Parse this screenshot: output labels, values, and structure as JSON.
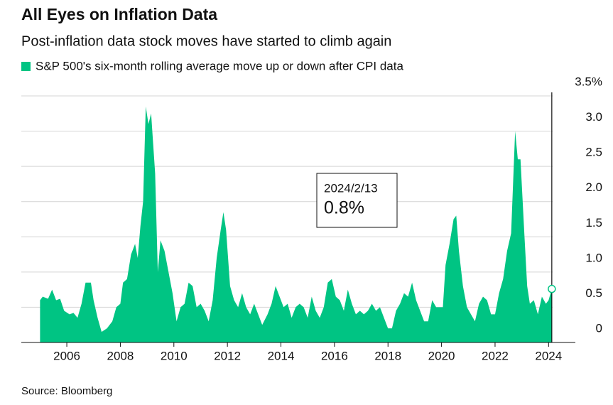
{
  "chart_data": {
    "type": "area",
    "title": "All Eyes on Inflation Data",
    "subtitle": "Post-inflation data stock moves have started to climb again",
    "source": "Source: Bloomberg",
    "series": [
      {
        "name": "S&P 500's six-month rolling average move up or down after CPI data",
        "color": "#00c483",
        "x": [
          2005.0,
          2005.1,
          2005.3,
          2005.45,
          2005.6,
          2005.75,
          2005.9,
          2006.1,
          2006.25,
          2006.4,
          2006.55,
          2006.7,
          2006.9,
          2007.0,
          2007.15,
          2007.3,
          2007.5,
          2007.7,
          2007.85,
          2008.0,
          2008.1,
          2008.25,
          2008.4,
          2008.55,
          2008.65,
          2008.75,
          2008.85,
          2008.95,
          2009.05,
          2009.15,
          2009.3,
          2009.4,
          2009.5,
          2009.65,
          2009.8,
          2009.95,
          2010.1,
          2010.25,
          2010.4,
          2010.55,
          2010.7,
          2010.85,
          2011.0,
          2011.15,
          2011.3,
          2011.45,
          2011.6,
          2011.75,
          2011.85,
          2011.95,
          2012.1,
          2012.25,
          2012.4,
          2012.55,
          2012.7,
          2012.85,
          2013.0,
          2013.15,
          2013.3,
          2013.5,
          2013.65,
          2013.8,
          2013.95,
          2014.1,
          2014.25,
          2014.4,
          2014.55,
          2014.7,
          2014.85,
          2015.0,
          2015.15,
          2015.3,
          2015.45,
          2015.6,
          2015.75,
          2015.9,
          2016.05,
          2016.2,
          2016.35,
          2016.5,
          2016.65,
          2016.8,
          2016.95,
          2017.1,
          2017.25,
          2017.4,
          2017.55,
          2017.7,
          2017.85,
          2018.0,
          2018.15,
          2018.3,
          2018.45,
          2018.6,
          2018.75,
          2018.9,
          2019.05,
          2019.2,
          2019.35,
          2019.5,
          2019.65,
          2019.8,
          2019.95,
          2020.05,
          2020.15,
          2020.3,
          2020.45,
          2020.55,
          2020.65,
          2020.8,
          2020.95,
          2021.1,
          2021.25,
          2021.4,
          2021.55,
          2021.7,
          2021.85,
          2022.0,
          2022.15,
          2022.3,
          2022.45,
          2022.6,
          2022.75,
          2022.85,
          2022.95,
          2023.1,
          2023.2,
          2023.3,
          2023.45,
          2023.6,
          2023.75,
          2023.9,
          2024.0,
          2024.12
        ],
        "values": [
          0.6,
          0.65,
          0.62,
          0.75,
          0.6,
          0.62,
          0.45,
          0.4,
          0.42,
          0.35,
          0.55,
          0.85,
          0.85,
          0.6,
          0.35,
          0.15,
          0.2,
          0.3,
          0.5,
          0.55,
          0.85,
          0.9,
          1.25,
          1.4,
          1.2,
          1.65,
          2.0,
          3.35,
          3.1,
          3.25,
          2.4,
          1.0,
          1.45,
          1.3,
          1.0,
          0.7,
          0.3,
          0.5,
          0.55,
          0.85,
          0.8,
          0.5,
          0.55,
          0.45,
          0.3,
          0.6,
          1.2,
          1.6,
          1.85,
          1.6,
          0.8,
          0.6,
          0.5,
          0.7,
          0.5,
          0.4,
          0.55,
          0.4,
          0.25,
          0.4,
          0.55,
          0.8,
          0.65,
          0.5,
          0.55,
          0.35,
          0.5,
          0.55,
          0.5,
          0.35,
          0.65,
          0.45,
          0.35,
          0.5,
          0.85,
          0.9,
          0.65,
          0.6,
          0.45,
          0.75,
          0.55,
          0.4,
          0.45,
          0.4,
          0.45,
          0.55,
          0.45,
          0.5,
          0.35,
          0.2,
          0.2,
          0.45,
          0.55,
          0.7,
          0.65,
          0.85,
          0.6,
          0.45,
          0.3,
          0.3,
          0.6,
          0.5,
          0.5,
          0.5,
          1.1,
          1.4,
          1.75,
          1.8,
          1.3,
          0.8,
          0.5,
          0.4,
          0.3,
          0.55,
          0.65,
          0.6,
          0.4,
          0.4,
          0.7,
          0.9,
          1.3,
          1.55,
          3.0,
          2.6,
          2.6,
          1.5,
          0.8,
          0.55,
          0.6,
          0.4,
          0.65,
          0.55,
          0.6,
          0.76
        ]
      }
    ],
    "annotation": {
      "date": "2024/2/13",
      "label": "0.8%"
    },
    "xlim": [
      2004.3,
      2025
    ],
    "xticks": [
      2006,
      2008,
      2010,
      2012,
      2014,
      2016,
      2018,
      2020,
      2022,
      2024
    ],
    "ylim": [
      0,
      3.5
    ],
    "yticks": [
      0,
      0.5,
      {
        "value": 1,
        "label": "1.0"
      },
      1.5,
      {
        "value": 2,
        "label": "2.0"
      },
      2.5,
      {
        "value": 3,
        "label": "3.0"
      },
      {
        "value": 3.5,
        "label": "3.5%"
      }
    ],
    "grid": true
  }
}
